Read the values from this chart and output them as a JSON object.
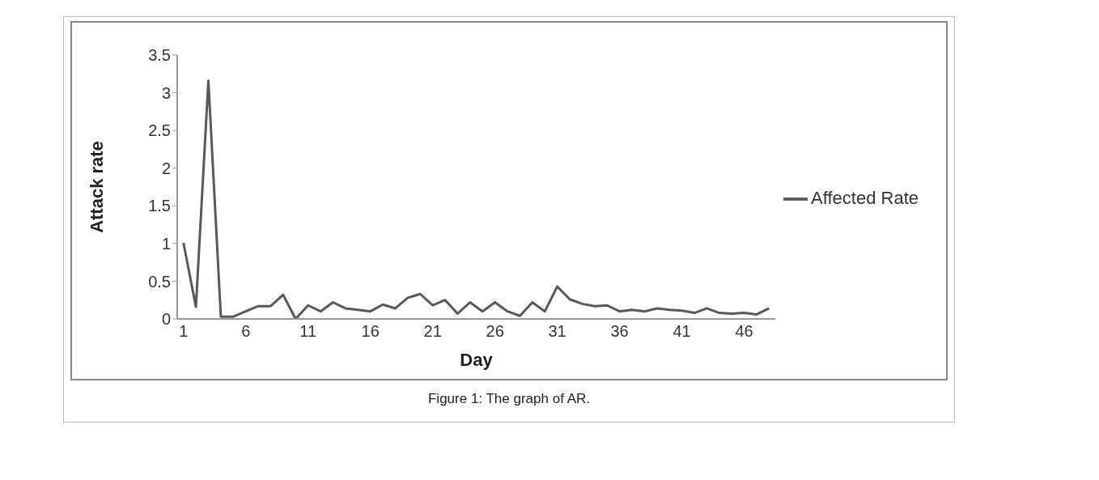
{
  "chart_data": {
    "type": "line",
    "xlabel": "Day",
    "ylabel": "Attack rate",
    "x": [
      1,
      2,
      3,
      4,
      5,
      6,
      7,
      8,
      9,
      10,
      11,
      12,
      13,
      14,
      15,
      16,
      17,
      18,
      19,
      20,
      21,
      22,
      23,
      24,
      25,
      26,
      27,
      28,
      29,
      30,
      31,
      32,
      33,
      34,
      35,
      36,
      37,
      38,
      39,
      40,
      41,
      42,
      43,
      44,
      45,
      46,
      47,
      48
    ],
    "series": [
      {
        "name": "Affected Rate",
        "color": "#595959",
        "values": [
          1.01,
          0.16,
          3.16,
          0.03,
          0.03,
          0.1,
          0.17,
          0.17,
          0.32,
          0,
          0.18,
          0.1,
          0.22,
          0.14,
          0.12,
          0.1,
          0.19,
          0.14,
          0.28,
          0.33,
          0.18,
          0.25,
          0.07,
          0.22,
          0.1,
          0.22,
          0.1,
          0.04,
          0.22,
          0.1,
          0.43,
          0.26,
          0.2,
          0.17,
          0.18,
          0.1,
          0.12,
          0.1,
          0.14,
          0.12,
          0.11,
          0.08,
          0.14,
          0.08,
          0.07,
          0.08,
          0.06,
          0.14
        ]
      }
    ],
    "xlim": [
      0.5,
      48.5
    ],
    "xticks": [
      1,
      6,
      11,
      16,
      21,
      26,
      31,
      36,
      41,
      46
    ],
    "ylim": [
      0,
      3.5
    ],
    "yticks": [
      0,
      0.5,
      1,
      1.5,
      2,
      2.5,
      3,
      3.5
    ],
    "grid": false,
    "legend": "right",
    "marker": "none",
    "line_style": "solid",
    "annotations": [
      "Figure 1: The graph of AR."
    ]
  }
}
